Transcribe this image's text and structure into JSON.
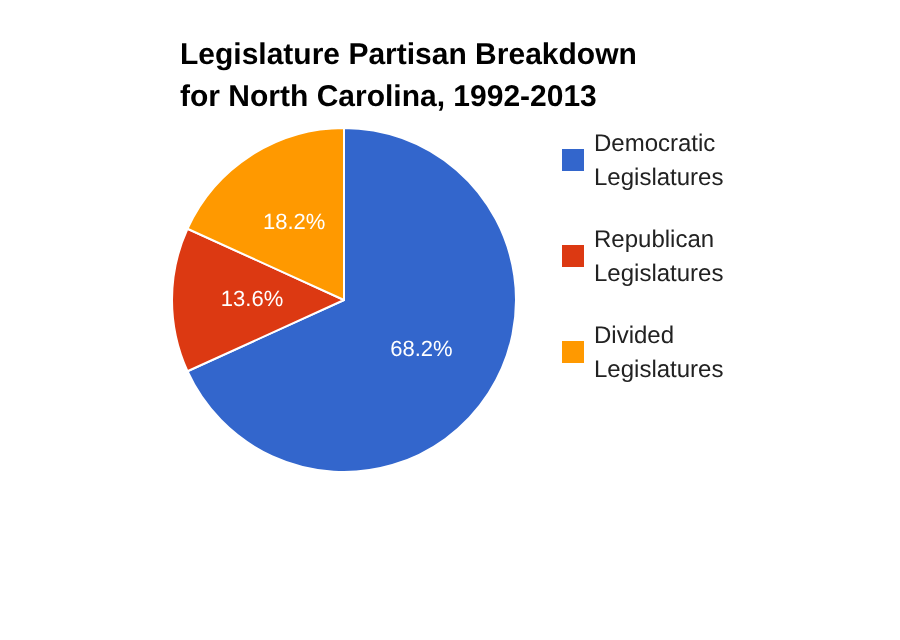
{
  "chart_data": {
    "type": "pie",
    "title": "Legislature Partisan Breakdown for North Carolina, 1992-2013",
    "categories": [
      "Democratic Legislatures",
      "Republican Legislatures",
      "Divided Legislatures"
    ],
    "values": [
      68.2,
      13.6,
      18.2
    ],
    "colors": [
      "#3366cc",
      "#dc3912",
      "#ff9900"
    ],
    "value_labels": [
      "68.2%",
      "13.6%",
      "18.2%"
    ],
    "legend": "right"
  }
}
